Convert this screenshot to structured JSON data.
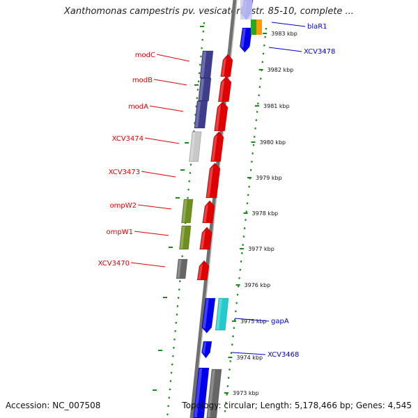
{
  "title": "Xanthomonas campestris pv. vesicatoria str. 85-10, complete ...",
  "footer": {
    "accession": "Accession: NC_007508",
    "summary": "Topology: circular; Length: 5,178,466 bp; Genes: 4,545"
  },
  "colors": {
    "left_label": "#dd0000",
    "right_label": "#0000cc",
    "dotted_ring": "#1a8a1a",
    "backbone": "#888888"
  },
  "ticks": [
    "3983 kbp",
    "3982 kbp",
    "3981 kbp",
    "3980 kbp",
    "3979 kbp",
    "3978 kbp",
    "3977 kbp",
    "3976 kbp",
    "3975 kbp",
    "3974 kbp",
    "3973 kbp"
  ],
  "left_labels": [
    "modC",
    "modB",
    "modA",
    "XCV3474",
    "XCV3473",
    "ompW2",
    "ompW1",
    "XCV3470"
  ],
  "right_labels": [
    "blaR1",
    "XCV3478",
    "gapA",
    "XCV3468"
  ],
  "genes": [
    {
      "name": "modC",
      "color": "#e00000",
      "strand": "fwd"
    },
    {
      "name": "modB",
      "color": "#e00000",
      "strand": "fwd"
    },
    {
      "name": "modA",
      "color": "#e00000",
      "strand": "fwd"
    },
    {
      "name": "XCV3474",
      "color": "#e00000",
      "strand": "fwd"
    },
    {
      "name": "XCV3473",
      "color": "#e00000",
      "strand": "fwd"
    },
    {
      "name": "ompW2",
      "color": "#e00000",
      "strand": "fwd"
    },
    {
      "name": "ompW1",
      "color": "#e00000",
      "strand": "fwd"
    },
    {
      "name": "XCV3470",
      "color": "#e00000",
      "strand": "fwd"
    },
    {
      "name": "gapA",
      "color": "#0000ee",
      "strand": "rev"
    },
    {
      "name": "XCV3468",
      "color": "#0000ee",
      "strand": "rev"
    },
    {
      "name": "blaR1",
      "color": "#0000ee",
      "strand": "rev"
    },
    {
      "name": "XCV3478",
      "color": "#0000ee",
      "strand": "rev"
    }
  ]
}
